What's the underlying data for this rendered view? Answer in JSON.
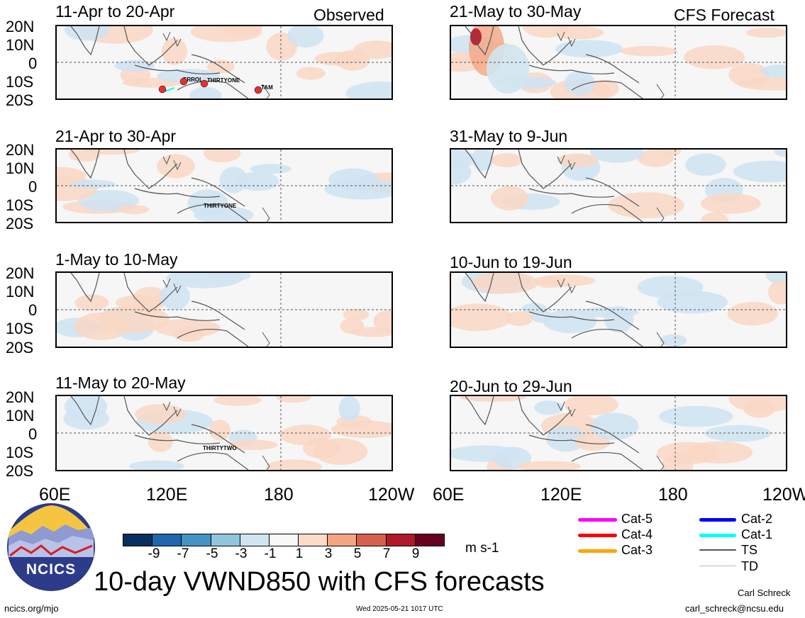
{
  "observed_label": "Observed",
  "forecast_label": "CFS Forecast",
  "lat_labels": [
    "20N",
    "10N",
    "0",
    "10S",
    "20S"
  ],
  "lon_labels": [
    "60E",
    "120E",
    "180",
    "120W"
  ],
  "panels": [
    {
      "title": "11-Apr to 20-Apr",
      "storms": [
        "ERROL",
        "THIRTYONE",
        "TAM"
      ]
    },
    {
      "title": "21-Apr to 30-Apr",
      "storms": [
        "THIRTYONE"
      ]
    },
    {
      "title": "1-May to 10-May",
      "storms": []
    },
    {
      "title": "11-May to 20-May",
      "storms": [
        "THIRTYTWO"
      ]
    },
    {
      "title": "21-May to 30-May",
      "storms": []
    },
    {
      "title": "31-May to 9-Jun",
      "storms": []
    },
    {
      "title": "10-Jun to 19-Jun",
      "storms": []
    },
    {
      "title": "20-Jun to 29-Jun",
      "storms": []
    }
  ],
  "colorbar": {
    "labels": [
      "-9",
      "-7",
      "-5",
      "-3",
      "-1",
      "1",
      "3",
      "5",
      "7",
      "9"
    ],
    "colors": [
      "#08305e",
      "#2166ac",
      "#4393c3",
      "#92c5de",
      "#d1e5f0",
      "#f8f8f8",
      "#fddbc7",
      "#f4a582",
      "#d6604d",
      "#b2182b",
      "#67001f"
    ],
    "unit": "m s-1"
  },
  "legend": [
    {
      "label": "Cat-5",
      "color": "#ff00ff"
    },
    {
      "label": "Cat-4",
      "color": "#ff0000"
    },
    {
      "label": "Cat-3",
      "color": "#ffa500"
    },
    {
      "label": "Cat-2",
      "color": "#0000ff"
    },
    {
      "label": "Cat-1",
      "color": "#00ffff"
    },
    {
      "label": "TS",
      "color": "#555555"
    },
    {
      "label": "TD",
      "color": "#bbbbbb"
    }
  ],
  "logo_text": "NCICS",
  "main_title": "10-day VWND850 with CFS forecasts",
  "footer": {
    "url": "ncics.org/mjo",
    "timestamp": "Wed 2025-05-21 1017 UTC",
    "author": "Carl Schreck",
    "email": "carl_schreck@ncsu.edu"
  }
}
